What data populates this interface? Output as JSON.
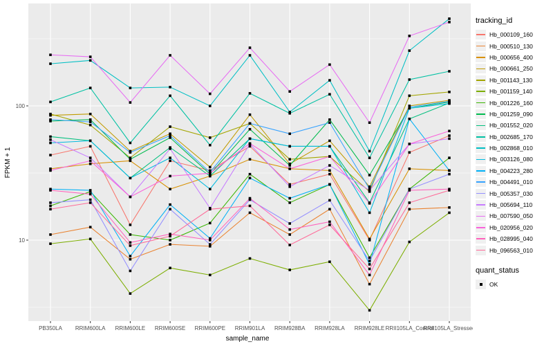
{
  "figure": {
    "panel_background": "#EBEBEB",
    "grid_color": "#FFFFFF",
    "tick_text_color": "#4D4D4D",
    "marker_color": "#000000"
  },
  "chart_data": {
    "type": "line",
    "title": "",
    "xlabel": "sample_name",
    "ylabel": "FPKM + 1",
    "y_scale": "log10",
    "ylim": [
      2.3,
      575
    ],
    "grid": true,
    "legend_position": "right",
    "y_axis": {
      "ticks": [
        {
          "label": "100",
          "value": 100
        },
        {
          "label": "10",
          "value": 10
        }
      ],
      "minor_values": [
        316.23,
        31.623,
        3.1623
      ]
    },
    "categories": [
      "PB350LA",
      "RRIM600LA",
      "RRIM600LE",
      "RRIM600SE",
      "RRIM600PE",
      "RRIM901LA",
      "RRIM928BA",
      "RRIM928LA",
      "RRIM928LE",
      "RRII105LA_Control",
      "RRII105LA_Stressed"
    ],
    "series": [
      {
        "name": "Hb_000109_160",
        "color": "#F8766D",
        "values": [
          43,
          50,
          13,
          39,
          33,
          50,
          26,
          31,
          10,
          45,
          60
        ]
      },
      {
        "name": "Hb_000510_130",
        "color": "#EA8331",
        "values": [
          11,
          12.5,
          7.2,
          9.3,
          9,
          16,
          11,
          17,
          4.7,
          17,
          17.5
        ]
      },
      {
        "name": "Hb_000656_400",
        "color": "#D89000",
        "values": [
          34,
          37,
          39,
          24,
          30,
          40,
          34,
          33,
          10.2,
          34,
          33
        ]
      },
      {
        "name": "Hb_000661_250",
        "color": "#C09B00",
        "values": [
          85,
          87,
          46,
          62,
          35,
          86,
          37,
          55,
          25,
          100,
          110
        ]
      },
      {
        "name": "Hb_001143_130",
        "color": "#A3A500",
        "values": [
          87,
          72,
          41,
          70,
          58,
          74,
          40,
          42,
          23,
          119,
          127
        ]
      },
      {
        "name": "Hb_001159_140",
        "color": "#7CAE00",
        "values": [
          9.4,
          10.2,
          4,
          6.2,
          5.5,
          7.3,
          6,
          6.9,
          3,
          9.7,
          16
        ]
      },
      {
        "name": "Hb_001226_160",
        "color": "#39B600",
        "values": [
          18,
          23,
          11,
          10,
          13.4,
          31,
          19,
          26,
          7.4,
          24,
          41
        ]
      },
      {
        "name": "Hb_001259_090",
        "color": "#00BB4E",
        "values": [
          77,
          79,
          40,
          58,
          31,
          67,
          36,
          79,
          30.5,
          96,
          107
        ]
      },
      {
        "name": "Hb_001552_020",
        "color": "#00BF7D",
        "values": [
          59,
          55,
          29,
          49,
          30,
          57,
          50,
          50,
          19,
          80,
          105
        ]
      },
      {
        "name": "Hb_002685_170",
        "color": "#00C1A3",
        "values": [
          107,
          136,
          53,
          119,
          51,
          124,
          88,
          122,
          41,
          157,
          181
        ]
      },
      {
        "name": "Hb_002868_010",
        "color": "#00BFC4",
        "values": [
          206,
          218,
          136,
          138,
          100,
          238,
          90,
          155,
          46,
          258,
          446
        ]
      },
      {
        "name": "Hb_003126_080",
        "color": "#00BAE0",
        "values": [
          53,
          55,
          29,
          41,
          24,
          57,
          50,
          50,
          16,
          96,
          104
        ]
      },
      {
        "name": "Hb_004223_280",
        "color": "#00B0F6",
        "values": [
          24,
          23.5,
          7.6,
          18.4,
          10.3,
          29,
          20.5,
          26,
          6.6,
          80,
          33
        ]
      },
      {
        "name": "Hb_004491_010",
        "color": "#35A2FF",
        "values": [
          79,
          76,
          45,
          60,
          32,
          74,
          62,
          75,
          24,
          98,
          108
        ]
      },
      {
        "name": "Hb_005357_030",
        "color": "#9590FF",
        "values": [
          19,
          20,
          5.9,
          17,
          9.3,
          20,
          13.3,
          19.8,
          7,
          24,
          31
        ]
      },
      {
        "name": "Hb_005694_110",
        "color": "#C77CFF",
        "values": [
          56,
          41,
          21,
          48,
          17.3,
          52,
          25,
          36,
          23.5,
          52,
          57
        ]
      },
      {
        "name": "Hb_007590_050",
        "color": "#E76BF3",
        "values": [
          240,
          232,
          106,
          238,
          123,
          271,
          128,
          203,
          75,
          332,
          421
        ]
      },
      {
        "name": "Hb_020956_020",
        "color": "#FA62DB",
        "values": [
          33,
          39,
          21,
          30,
          31.5,
          52.5,
          34,
          42,
          18.8,
          52,
          65
        ]
      },
      {
        "name": "Hb_028995_040",
        "color": "#FF62BC",
        "values": [
          23.5,
          22,
          9.6,
          11.1,
          10,
          20.5,
          12,
          13.7,
          5.5,
          23.5,
          24
        ]
      },
      {
        "name": "Hb_096563_010",
        "color": "#FF6A98",
        "values": [
          17,
          19,
          9.1,
          10.7,
          17,
          18,
          9.2,
          13,
          6.1,
          19,
          23.5
        ]
      }
    ],
    "legend": {
      "title": "tracking_id"
    },
    "legend2": {
      "title": "quant_status",
      "items": [
        {
          "label": "OK",
          "marker": "black-square"
        }
      ]
    }
  }
}
